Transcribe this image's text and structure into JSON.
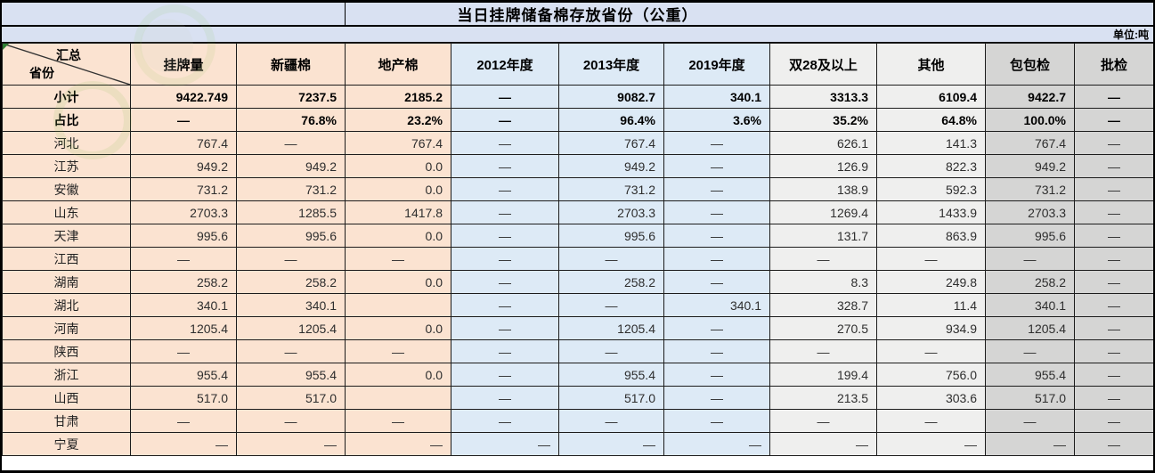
{
  "title": "当日挂牌储备棉存放省份（公重）",
  "unit_label": "单位:吨",
  "corner": {
    "top": "汇总",
    "bottom": "省份"
  },
  "colors": {
    "band": "#d9e1f2",
    "group_peach": "#fbe3d1",
    "group_blue": "#ddeaf6",
    "group_lightgray": "#efefee",
    "group_gray": "#d5d5d4",
    "border": "#1c1c1c",
    "error_indicator": "#2f7d32"
  },
  "table": {
    "columns": [
      {
        "label": "挂牌量",
        "group": "peach"
      },
      {
        "label": "新疆棉",
        "group": "peach"
      },
      {
        "label": "地产棉",
        "group": "peach"
      },
      {
        "label": "2012年度",
        "group": "blue"
      },
      {
        "label": "2013年度",
        "group": "blue"
      },
      {
        "label": "2019年度",
        "group": "blue"
      },
      {
        "label": "双28及以上",
        "group": "lgray"
      },
      {
        "label": "其他",
        "group": "lgray"
      },
      {
        "label": "包包检",
        "group": "gray"
      },
      {
        "label": "批检",
        "group": "gray"
      }
    ],
    "rows": [
      {
        "label": "小计",
        "bold": true,
        "cells": [
          "9422.749",
          "7237.5",
          "2185.2",
          "—",
          "9082.7",
          "340.1",
          "3313.3",
          "6109.4",
          "9422.7",
          "—"
        ]
      },
      {
        "label": "占比",
        "bold": true,
        "cells": [
          "—",
          "76.8%",
          "23.2%",
          "—",
          "96.4%",
          "3.6%",
          "35.2%",
          "64.8%",
          "100.0%",
          "—"
        ]
      },
      {
        "label": "河北",
        "cells": [
          "767.4",
          "—",
          "767.4",
          "—",
          "767.4",
          "—",
          "626.1",
          "141.3",
          "767.4",
          "—"
        ]
      },
      {
        "label": "江苏",
        "cells": [
          "949.2",
          "949.2",
          "0.0",
          "—",
          "949.2",
          "—",
          "126.9",
          "822.3",
          "949.2",
          "—"
        ]
      },
      {
        "label": "安徽",
        "cells": [
          "731.2",
          "731.2",
          "0.0",
          "—",
          "731.2",
          "—",
          "138.9",
          "592.3",
          "731.2",
          "—"
        ]
      },
      {
        "label": "山东",
        "cells": [
          "2703.3",
          "1285.5",
          "1417.8",
          "—",
          "2703.3",
          "—",
          "1269.4",
          "1433.9",
          "2703.3",
          "—"
        ]
      },
      {
        "label": "天津",
        "cells": [
          "995.6",
          "995.6",
          "0.0",
          "—",
          "995.6",
          "—",
          "131.7",
          "863.9",
          "995.6",
          "—"
        ]
      },
      {
        "label": "江西",
        "cells": [
          "—",
          "—",
          "—",
          "—",
          "—",
          "—",
          "—",
          "—",
          "—",
          "—"
        ]
      },
      {
        "label": "湖南",
        "cells": [
          "258.2",
          "258.2",
          "0.0",
          "—",
          "258.2",
          "—",
          "8.3",
          "249.8",
          "258.2",
          "—"
        ]
      },
      {
        "label": "湖北",
        "cells": [
          "340.1",
          "340.1",
          "",
          "—",
          "—",
          "340.1",
          "328.7",
          "11.4",
          "340.1",
          "—"
        ]
      },
      {
        "label": "河南",
        "cells": [
          "1205.4",
          "1205.4",
          "0.0",
          "—",
          "1205.4",
          "—",
          "270.5",
          "934.9",
          "1205.4",
          "—"
        ]
      },
      {
        "label": "陕西",
        "cells": [
          "—",
          "—",
          "—",
          "—",
          "—",
          "—",
          "—",
          "—",
          "—",
          "—"
        ]
      },
      {
        "label": "浙江",
        "cells": [
          "955.4",
          "955.4",
          "0.0",
          "—",
          "955.4",
          "—",
          "199.4",
          "756.0",
          "955.4",
          "—"
        ]
      },
      {
        "label": "山西",
        "cells": [
          "517.0",
          "517.0",
          "",
          "—",
          "517.0",
          "—",
          "213.5",
          "303.6",
          "517.0",
          "—"
        ]
      },
      {
        "label": "甘肃",
        "cells": [
          "—",
          "—",
          "—",
          "—",
          "—",
          "—",
          "—",
          "—",
          "—",
          "—"
        ]
      },
      {
        "label": "宁夏",
        "dash_align": "right",
        "cells": [
          "—",
          "—",
          "—",
          "—",
          "—",
          "—",
          "—",
          "—",
          "—",
          "—"
        ]
      }
    ]
  }
}
